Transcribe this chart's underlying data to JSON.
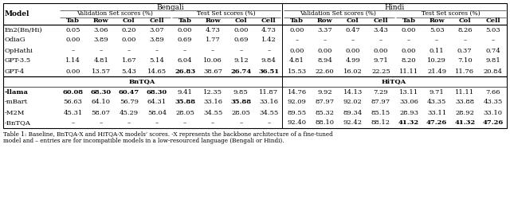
{
  "caption": "Table 1: Baseline, BnTQA-X and HiTQA-X models’ scores. -X represents the backbone architecture of a fine-tuned\nmodel and – entries are for incompatible models in a low-resourced language (Bengali or Hindi).",
  "rows_top": [
    [
      "En2(Bn/Hi)",
      "0.05",
      "3.06",
      "0.20",
      "3.07",
      "0.00",
      "4.73",
      "0.00",
      "4.73",
      "0.00",
      "3.37",
      "0.47",
      "3.43",
      "0.00",
      "5.03",
      "8.26",
      "5.03"
    ],
    [
      "OdiaG",
      "0.00",
      "3.89",
      "0.00",
      "3.89",
      "0.69",
      "1.77",
      "0.69",
      "1.42",
      "–",
      "–",
      "–",
      "–",
      "–",
      "–",
      "–",
      "–"
    ],
    [
      "OpHathi",
      "–",
      "–",
      "–",
      "–",
      "–",
      "–",
      "–",
      "–",
      "0.00",
      "0.00",
      "0.00",
      "0.00",
      "0.00",
      "0.11",
      "0.37",
      "0.74"
    ],
    [
      "GPT-3.5",
      "1.14",
      "4.81",
      "1.67",
      "5.14",
      "6.04",
      "10.06",
      "9.12",
      "9.84",
      "4.81",
      "8.94",
      "4.99",
      "9.71",
      "8.20",
      "10.29",
      "7.10",
      "9.81"
    ],
    [
      "GPT-4",
      "0.00",
      "13.57",
      "5.43",
      "14.65",
      "26.83",
      "38.67",
      "26.74",
      "36.51",
      "15.53",
      "22.60",
      "16.02",
      "22.25",
      "11.11",
      "21.49",
      "11.76",
      "20.84"
    ]
  ],
  "rows_bottom": [
    [
      "-llama",
      "60.08",
      "68.30",
      "60.47",
      "68.30",
      "9.41",
      "12.35",
      "9.85",
      "11.87",
      "14.76",
      "9.92",
      "14.13",
      "7.29",
      "13.11",
      "9.71",
      "11.11",
      "7.66"
    ],
    [
      "-mBart",
      "56.63",
      "64.10",
      "56.79",
      "64.31",
      "35.88",
      "33.16",
      "35.88",
      "33.16",
      "92.09",
      "87.97",
      "92.02",
      "87.97",
      "33.06",
      "43.35",
      "33.88",
      "43.35"
    ],
    [
      "-M2M",
      "45.31",
      "58.07",
      "45.29",
      "58.04",
      "28.05",
      "34.55",
      "28.05",
      "34.55",
      "89.55",
      "85.32",
      "89.34",
      "85.15",
      "28.93",
      "33.11",
      "28.92",
      "33.10"
    ],
    [
      "-BnTQA",
      "–",
      "–",
      "–",
      "–",
      "–",
      "–",
      "–",
      "–",
      "92.40",
      "88.10",
      "92.42",
      "88.12",
      "41.32",
      "47.26",
      "41.32",
      "47.26"
    ]
  ],
  "bold_top": {
    "4": [
      5,
      7,
      8
    ]
  },
  "bold_bottom": {
    "0": [
      0,
      1,
      2,
      3,
      4
    ],
    "1": [
      5,
      7
    ],
    "3": [
      13,
      14,
      15,
      16
    ]
  },
  "font_size": 6.0
}
